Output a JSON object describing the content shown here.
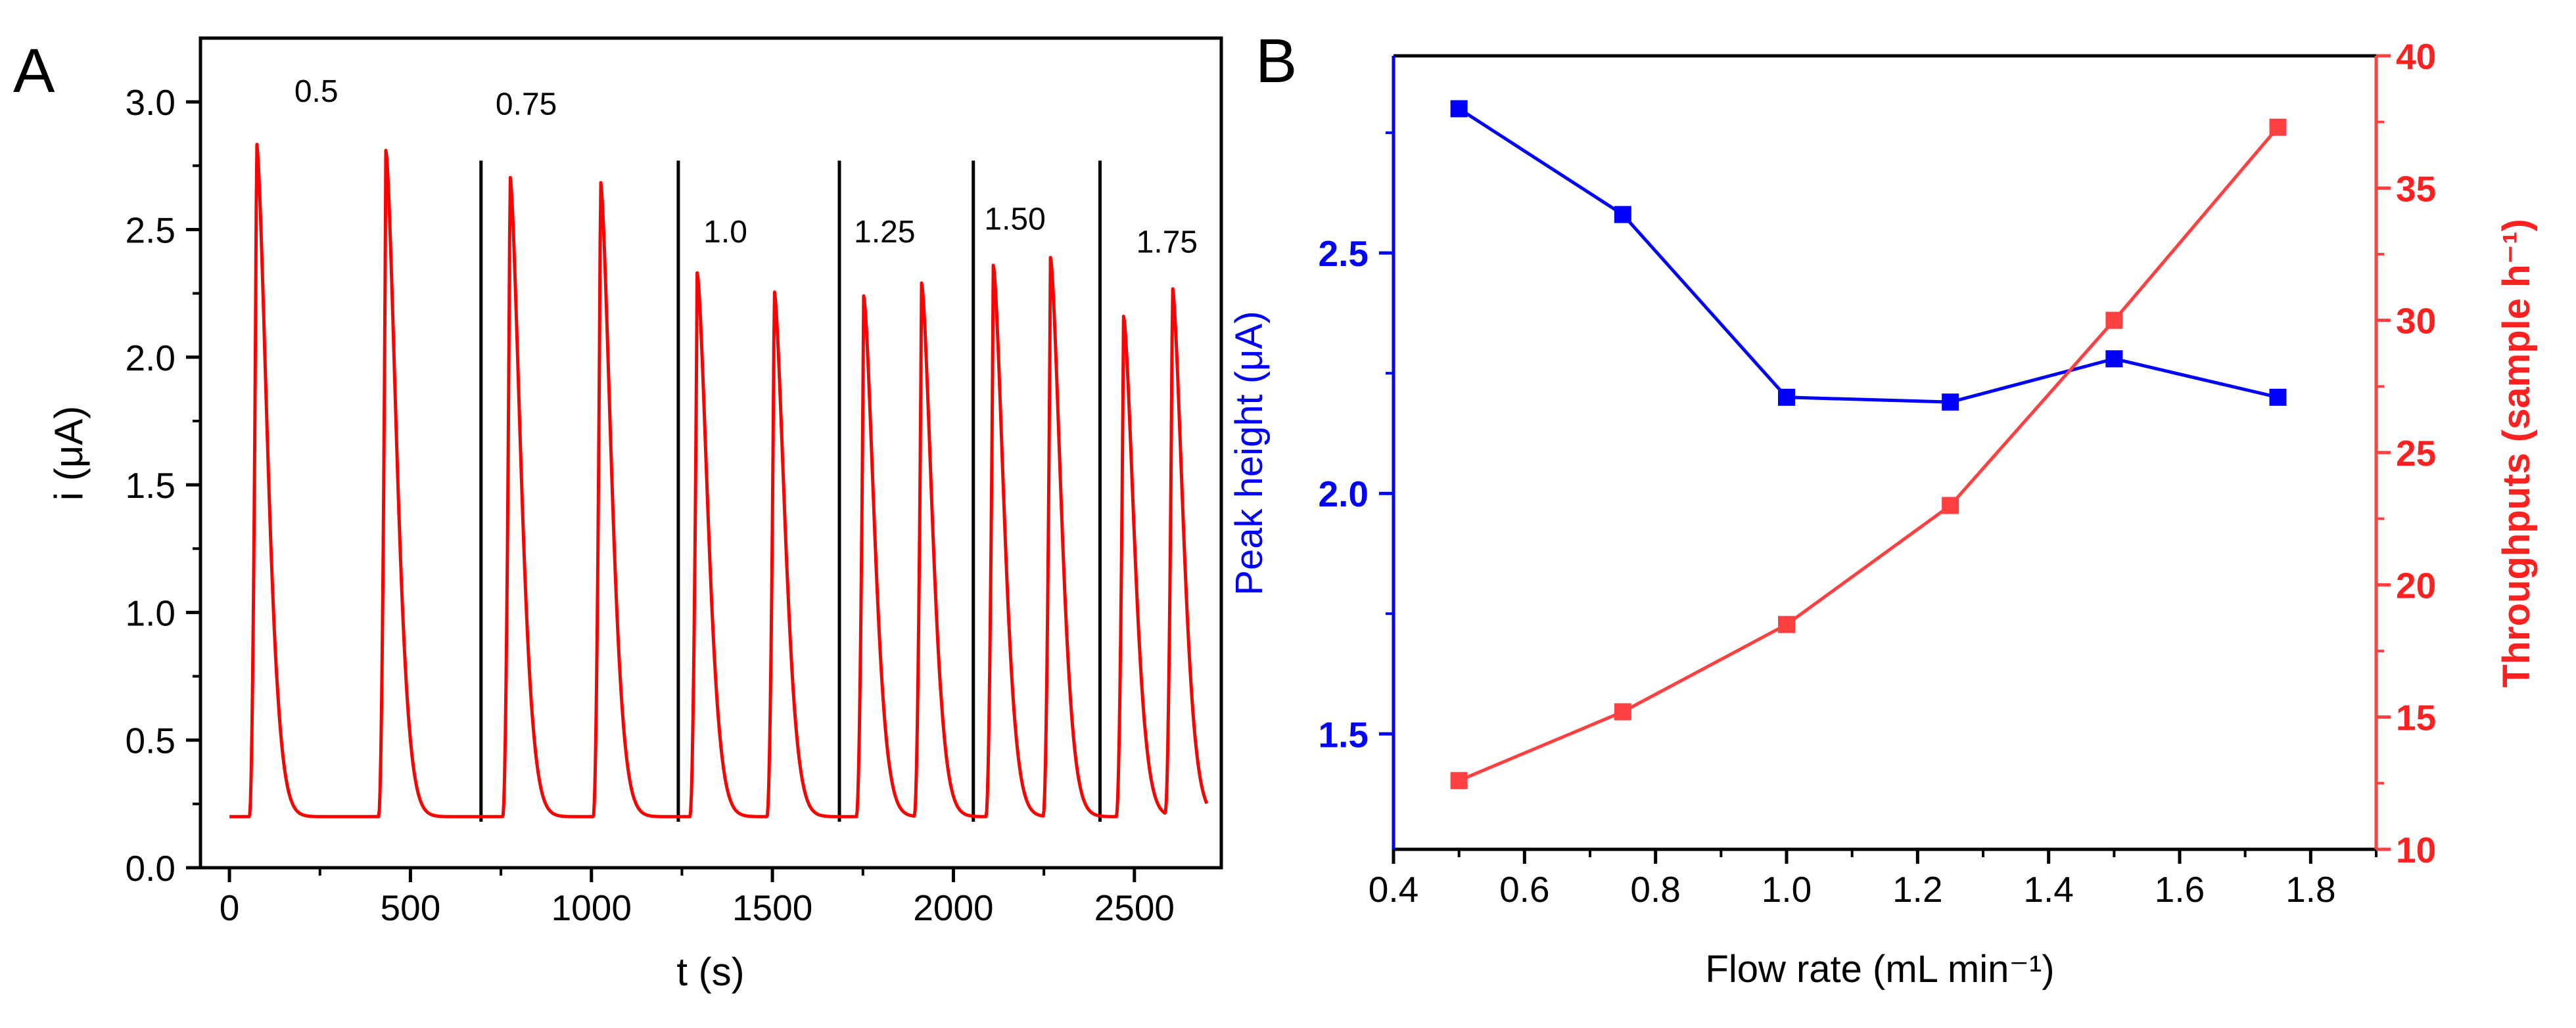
{
  "chart_data": [
    {
      "panel_label": "A",
      "type": "line",
      "title": "",
      "xlabel": "t (s)",
      "ylabel": "i (μA)",
      "xlim": [
        -80,
        2740
      ],
      "ylim": [
        0,
        3.25
      ],
      "xticks": [
        0,
        500,
        1000,
        1500,
        2000,
        2500
      ],
      "xtick_labels": [
        "0",
        "500",
        "1000",
        "1500",
        "2000",
        "2500"
      ],
      "yticks": [
        0,
        0.5,
        1.0,
        1.5,
        2.0,
        2.5,
        3.0
      ],
      "ytick_labels": [
        "0.0",
        "0.5",
        "1.0",
        "1.5",
        "2.0",
        "2.5",
        "3.0"
      ],
      "grid": false,
      "line_color": "#ff0000",
      "baseline": 0.2,
      "peaks": [
        {
          "t": 75,
          "height": 2.84
        },
        {
          "t": 432,
          "height": 2.81
        },
        {
          "t": 775,
          "height": 2.71
        },
        {
          "t": 1025,
          "height": 2.69
        },
        {
          "t": 1292,
          "height": 2.33
        },
        {
          "t": 1505,
          "height": 2.26
        },
        {
          "t": 1752,
          "height": 2.24
        },
        {
          "t": 1912,
          "height": 2.29
        },
        {
          "t": 2110,
          "height": 2.36
        },
        {
          "t": 2268,
          "height": 2.39
        },
        {
          "t": 2470,
          "height": 2.16
        },
        {
          "t": 2605,
          "height": 2.27
        }
      ],
      "separators": [
        695,
        1240,
        1685,
        2055,
        2405
      ],
      "segment_labels": [
        {
          "text": "0.5",
          "t": 240,
          "i": 3.0
        },
        {
          "text": "0.75",
          "t": 820,
          "i": 2.95
        },
        {
          "text": "1.0",
          "t": 1370,
          "i": 2.45
        },
        {
          "text": "1.25",
          "t": 1810,
          "i": 2.45
        },
        {
          "text": "1.50",
          "t": 2170,
          "i": 2.5
        },
        {
          "text": "1.75",
          "t": 2590,
          "i": 2.41
        }
      ]
    },
    {
      "panel_label": "B",
      "type": "line",
      "title": "",
      "xlabel": "Flow rate (mL min⁻¹)",
      "xlim": [
        0.4,
        1.9
      ],
      "xticks": [
        0.4,
        0.6,
        0.8,
        1.0,
        1.2,
        1.4,
        1.6,
        1.8
      ],
      "xtick_labels": [
        "0.4",
        "0.6",
        "0.8",
        "1.0",
        "1.2",
        "1.4",
        "1.6",
        "1.8"
      ],
      "grid": false,
      "x": [
        0.5,
        0.75,
        1.0,
        1.25,
        1.5,
        1.75
      ],
      "series": [
        {
          "name": "Peak height",
          "axis": "left",
          "ylabel": "Peak height (μA)",
          "color": "#0000ff",
          "ylim": [
            1.26,
            2.91
          ],
          "yticks": [
            1.5,
            2.0,
            2.5
          ],
          "ytick_labels": [
            "1.5",
            "2.0",
            "2.5"
          ],
          "values": [
            2.8,
            2.58,
            2.2,
            2.19,
            2.28,
            2.2
          ]
        },
        {
          "name": "Throughputs",
          "axis": "right",
          "ylabel": "Throughputs (sample h⁻¹)",
          "color": "#ff4040",
          "ylim": [
            10,
            40
          ],
          "yticks": [
            10,
            15,
            20,
            25,
            30,
            35,
            40
          ],
          "ytick_labels": [
            "10",
            "15",
            "20",
            "25",
            "30",
            "35",
            "40"
          ],
          "values": [
            12.6,
            15.2,
            18.5,
            23.0,
            30.0,
            37.3
          ]
        }
      ]
    }
  ]
}
